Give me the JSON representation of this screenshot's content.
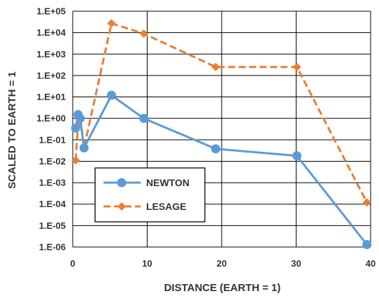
{
  "chart_data": {
    "type": "line",
    "title": "",
    "xlabel": "DISTANCE (EARTH = 1)",
    "ylabel": "SCALED TO EARTH = 1",
    "xlim": [
      0,
      40
    ],
    "x_ticks": [
      0,
      10,
      20,
      30,
      40
    ],
    "y_scale": "log",
    "ylim": [
      1e-06,
      100000.0
    ],
    "y_ticks": [
      "1.E-06",
      "1.E-05",
      "1.E-04",
      "1.E-03",
      "1.E-02",
      "1.E-01",
      "1.E+00",
      "1.E+01",
      "1.E+02",
      "1.E+03",
      "1.E+04",
      "1.E+05"
    ],
    "grid": true,
    "legend_position": "bottom-left",
    "series": [
      {
        "name": "NEWTON",
        "color": "#5B9BD5",
        "marker": "circle",
        "line_style": "solid",
        "points": [
          [
            0.39,
            0.35
          ],
          [
            0.72,
            1.5
          ],
          [
            1.0,
            1.0
          ],
          [
            1.52,
            0.042
          ],
          [
            5.2,
            12
          ],
          [
            9.54,
            1.0
          ],
          [
            19.2,
            0.038
          ],
          [
            30.1,
            0.018
          ],
          [
            39.5,
            1.3e-06
          ]
        ]
      },
      {
        "name": "LESAGE",
        "color": "#ED7D31",
        "marker": "diamond",
        "line_style": "dashed",
        "points": [
          [
            0.39,
            0.011
          ],
          [
            0.72,
            0.5
          ],
          [
            1.0,
            1.0
          ],
          [
            1.52,
            0.042
          ],
          [
            5.2,
            27000
          ],
          [
            9.54,
            9000
          ],
          [
            19.2,
            250
          ],
          [
            30.1,
            250
          ],
          [
            39.5,
            0.00012
          ]
        ]
      }
    ]
  }
}
